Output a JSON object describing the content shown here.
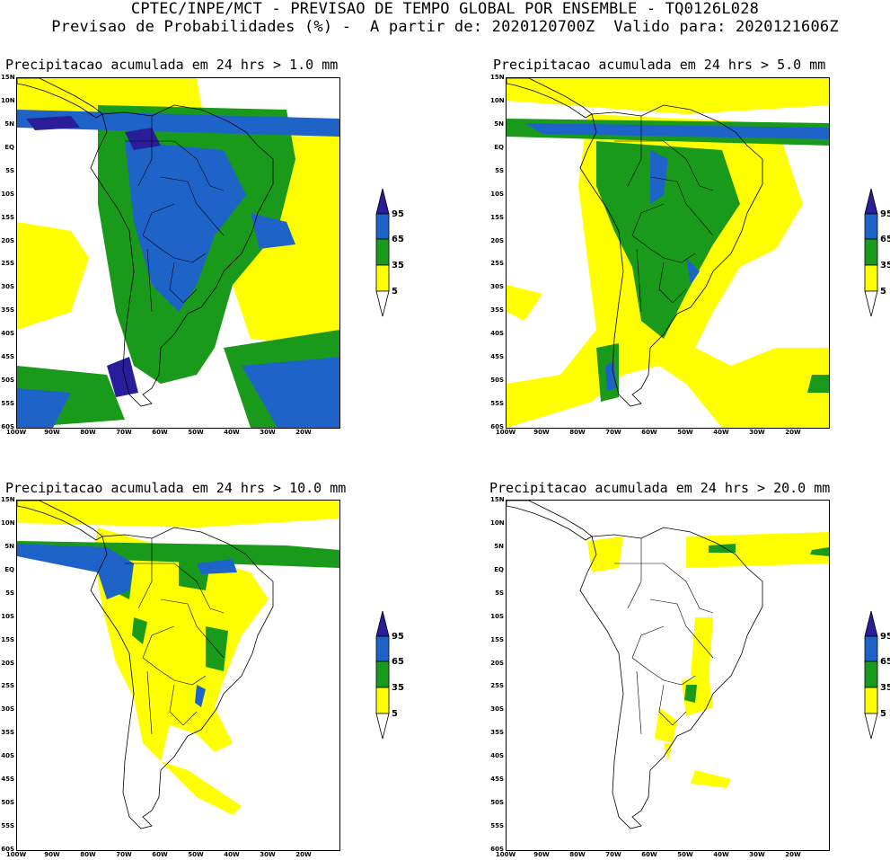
{
  "header": {
    "line1": "CPTEC/INPE/MCT - PREVISAO DE TEMPO GLOBAL POR ENSEMBLE - TQ0126L028",
    "line2": "Previsao de Probabilidades (%) -  A partir de: 2020120700Z  Valido para: 2020121606Z"
  },
  "panels": [
    {
      "title": "Precipitacao acumulada em 24 hrs > 1.0 mm"
    },
    {
      "title": "Precipitacao acumulada em 24 hrs > 5.0 mm"
    },
    {
      "title": "Precipitacao acumulada em 24 hrs > 10.0 mm"
    },
    {
      "title": "Precipitacao acumulada em 24 hrs > 20.0 mm"
    }
  ],
  "lat_labels": [
    "15N",
    "10N",
    "5N",
    "EQ",
    "5S",
    "10S",
    "15S",
    "20S",
    "25S",
    "30S",
    "35S",
    "40S",
    "45S",
    "50S",
    "55S",
    "60S"
  ],
  "lon_labels": [
    "100W",
    "90W",
    "80W",
    "70W",
    "60W",
    "50W",
    "40W",
    "30W",
    "20W"
  ],
  "colorbar": {
    "labels": [
      "95",
      "65",
      "35",
      "5"
    ],
    "colors": {
      "c5": "#ffff00",
      "c35": "#1a9a1a",
      "c65": "#1e64c8",
      "c95": "#2a1d9a"
    }
  }
}
